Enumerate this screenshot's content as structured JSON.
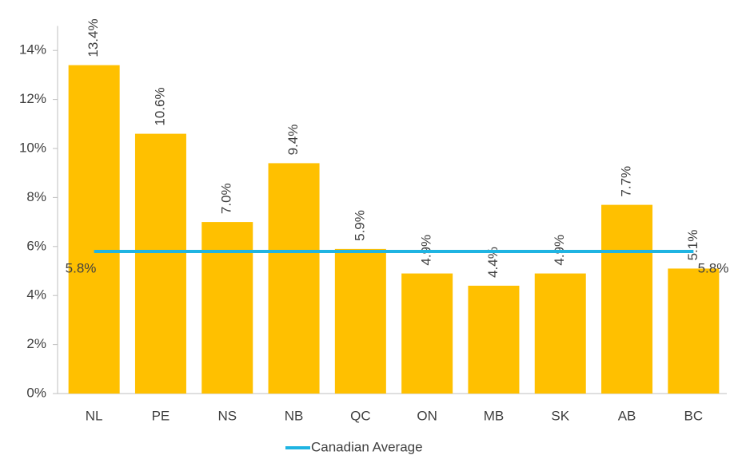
{
  "chart_data": {
    "type": "bar",
    "categories": [
      "NL",
      "PE",
      "NS",
      "NB",
      "QC",
      "ON",
      "MB",
      "SK",
      "AB",
      "BC"
    ],
    "values": [
      13.4,
      10.6,
      7.0,
      9.4,
      5.9,
      4.9,
      4.4,
      4.9,
      7.7,
      5.1
    ],
    "value_labels": [
      "13.4%",
      "10.6%",
      "7.0%",
      "9.4%",
      "5.9%",
      "4.9%",
      "4.4%",
      "4.9%",
      "7.7%",
      "5.1%"
    ],
    "color": "#ffc000",
    "line_series": {
      "name": "Canadian Average",
      "color": "#1fb4e2",
      "values": [
        5.8,
        5.8,
        5.8,
        5.8,
        5.8,
        5.8,
        5.8,
        5.8,
        5.8,
        5.8
      ],
      "value_labels": [
        "5.8%",
        null,
        null,
        null,
        null,
        null,
        null,
        null,
        null,
        "5.8%"
      ]
    },
    "ylim": [
      0,
      15
    ],
    "yticks": [
      {
        "value": 0,
        "label": "0%"
      },
      {
        "value": 2,
        "label": "2%"
      },
      {
        "value": 4,
        "label": "4%"
      },
      {
        "value": 6,
        "label": "6%"
      },
      {
        "value": 8,
        "label": "8%"
      },
      {
        "value": 10,
        "label": "10%"
      },
      {
        "value": 12,
        "label": "12%"
      },
      {
        "value": 14,
        "label": "14%"
      }
    ],
    "legend": "bottom"
  }
}
